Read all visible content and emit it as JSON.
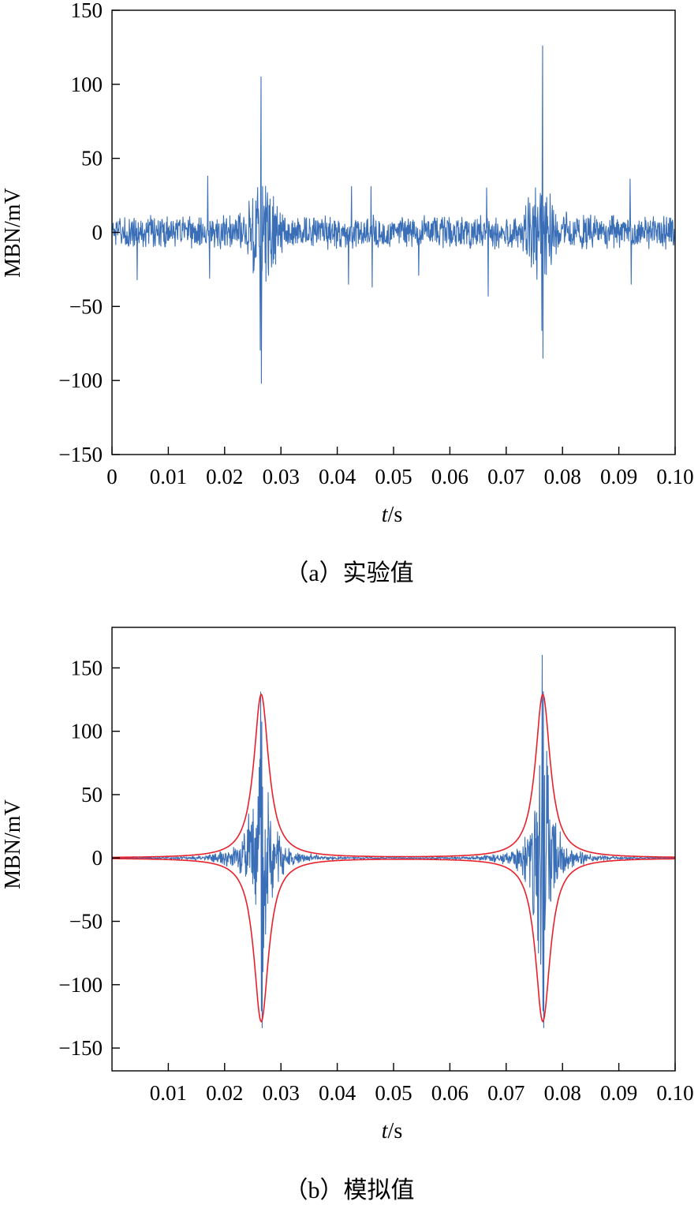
{
  "chart_data": [
    {
      "type": "line",
      "caption": "（a）实验值",
      "xlabel": "t/s",
      "ylabel": "MBN/mV",
      "xlim": [
        0,
        0.1
      ],
      "ylim": [
        -150,
        150
      ],
      "xticks": [
        "0",
        "0.01",
        "0.02",
        "0.03",
        "0.04",
        "0.05",
        "0.06",
        "0.07",
        "0.08",
        "0.09",
        "0.10"
      ],
      "yticks": [
        "150",
        "100",
        "50",
        "0",
        "−50",
        "−100",
        "−150"
      ],
      "grid": false,
      "colors": {
        "signal": "#3a6fb8"
      },
      "series": [
        {
          "kind": "noise-signal",
          "base_amplitude": 12,
          "bursts": [
            {
              "center": 0.0265,
              "peak": 105,
              "min": -102,
              "width": 0.0035
            },
            {
              "center": 0.0765,
              "peak": 126,
              "min": -85,
              "width": 0.0035
            }
          ],
          "spikes": [
            {
              "x": 0.0045,
              "y": -32
            },
            {
              "x": 0.017,
              "y": 38
            },
            {
              "x": 0.0173,
              "y": -31
            },
            {
              "x": 0.0425,
              "y": 31
            },
            {
              "x": 0.042,
              "y": -35
            },
            {
              "x": 0.046,
              "y": 31
            },
            {
              "x": 0.0462,
              "y": -37
            },
            {
              "x": 0.0545,
              "y": -29
            },
            {
              "x": 0.0665,
              "y": 30
            },
            {
              "x": 0.0668,
              "y": -43
            },
            {
              "x": 0.092,
              "y": 36
            },
            {
              "x": 0.0922,
              "y": -35
            }
          ]
        }
      ]
    },
    {
      "type": "line",
      "caption": "（b）模拟值",
      "xlabel": "t/s",
      "ylabel": "MBN/mV",
      "xlim": [
        0,
        0.1
      ],
      "ylim": [
        -168,
        182
      ],
      "xticks": [
        "0.01",
        "0.02",
        "0.03",
        "0.04",
        "0.05",
        "0.06",
        "0.07",
        "0.08",
        "0.09",
        "0.10"
      ],
      "yticks": [
        "150",
        "100",
        "50",
        "0",
        "−50",
        "−100",
        "−150"
      ],
      "grid": false,
      "colors": {
        "signal": "#3a6fb8",
        "envelope": "#e8202a"
      },
      "series": [
        {
          "kind": "burst-signal",
          "bursts": [
            {
              "center": 0.0265,
              "peak": 131,
              "min": -134,
              "width": 0.003
            },
            {
              "center": 0.0765,
              "peak": 160,
              "min": -134,
              "width": 0.003
            }
          ]
        },
        {
          "kind": "envelope",
          "peaks": [
            {
              "center": 0.0265,
              "amplitude": 129,
              "halfwidth": 0.0016
            },
            {
              "center": 0.0765,
              "amplitude": 129,
              "halfwidth": 0.0016
            }
          ]
        }
      ]
    }
  ]
}
